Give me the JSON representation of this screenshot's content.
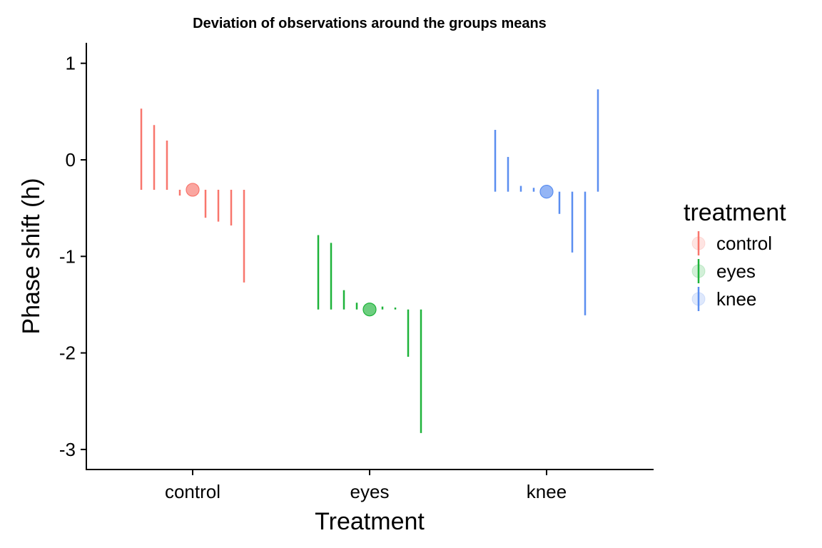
{
  "chart_data": {
    "type": "scatter",
    "title": "Deviation of observations around the groups means",
    "xlabel": "Treatment",
    "ylabel": "Phase shift (h)",
    "ylim": [
      -3.2,
      1.25
    ],
    "yticks": [
      1,
      0,
      -1,
      -2,
      -3
    ],
    "ytick_labels": [
      "1",
      "0",
      "-1",
      "-2",
      "-3"
    ],
    "categories": [
      "control",
      "eyes",
      "knee"
    ],
    "grid": false,
    "legend": {
      "title": "treatment",
      "position": "right"
    },
    "series": [
      {
        "name": "control",
        "color": "#F8766D",
        "mean": -0.31,
        "observations": [
          0.53,
          0.36,
          0.2,
          -0.37,
          -0.6,
          -0.64,
          -0.68,
          -1.27
        ]
      },
      {
        "name": "eyes",
        "color": "#1EB33A",
        "mean": -1.55,
        "observations": [
          -0.78,
          -0.86,
          -1.35,
          -1.48,
          -1.52,
          -1.53,
          -2.04,
          -2.83
        ]
      },
      {
        "name": "knee",
        "color": "#5B8EF0",
        "mean": -0.33,
        "observations": [
          0.31,
          0.03,
          -0.27,
          -0.29,
          -0.56,
          -0.96,
          -1.61,
          0.73
        ]
      }
    ]
  }
}
